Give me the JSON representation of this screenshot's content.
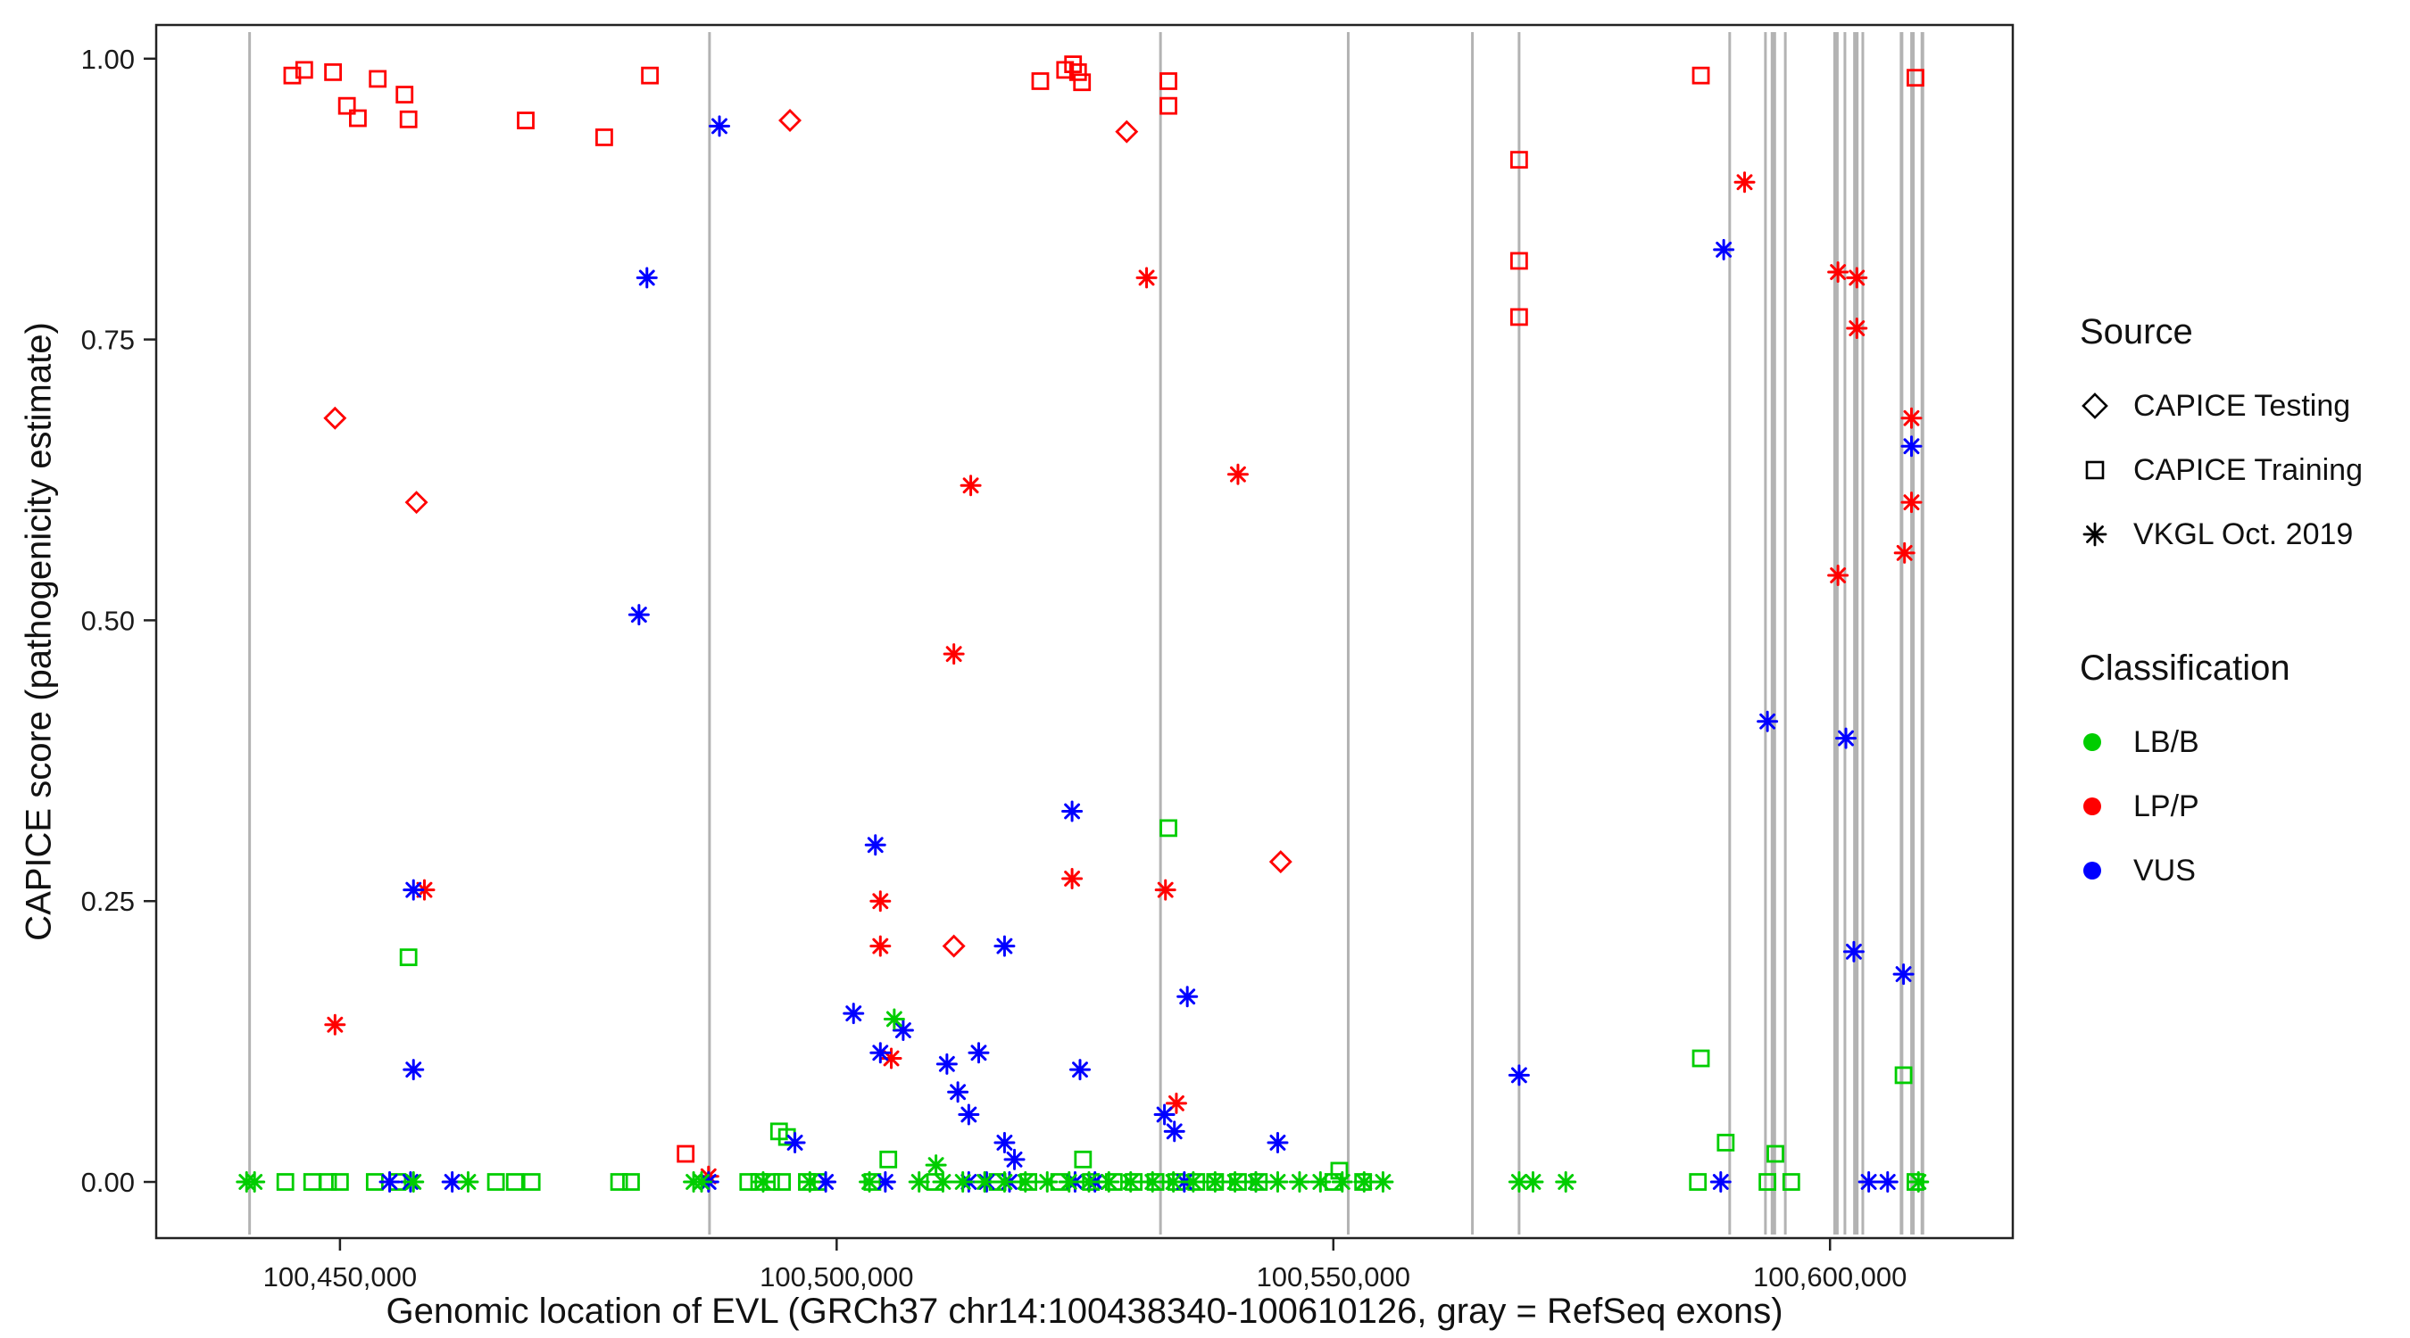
{
  "axes": {
    "y_title": "CAPICE score (pathogenicity estimate)",
    "x_title": "Genomic location of EVL (GRCh37 chr14:100438340-100610126, gray = RefSeq exons)",
    "y_ticks": [
      {
        "value": 1.0,
        "label": "1.00"
      },
      {
        "value": 0.75,
        "label": "0.75"
      },
      {
        "value": 0.5,
        "label": "0.50"
      },
      {
        "value": 0.25,
        "label": "0.25"
      },
      {
        "value": 0.0,
        "label": "0.00"
      }
    ],
    "x_ticks": [
      {
        "value": 100450000,
        "label": "100,450,000"
      },
      {
        "value": 100500000,
        "label": "100,500,000"
      },
      {
        "value": 100550000,
        "label": "100,550,000"
      },
      {
        "value": 100600000,
        "label": "100,600,000"
      }
    ]
  },
  "legend": {
    "source": {
      "title": "Source",
      "items": [
        {
          "label": "CAPICE Testing",
          "symbol": "diamond"
        },
        {
          "label": "CAPICE Training",
          "symbol": "square"
        },
        {
          "label": "VKGL Oct. 2019",
          "symbol": "asterisk"
        }
      ]
    },
    "classification": {
      "title": "Classification",
      "items": [
        {
          "label": "LB/B",
          "color": "#00CD00"
        },
        {
          "label": "LP/P",
          "color": "#FF0000"
        },
        {
          "label": "VUS",
          "color": "#0000FF"
        }
      ]
    }
  },
  "chart_data": {
    "type": "scatter",
    "title": "",
    "xlabel": "Genomic location of EVL (GRCh37 chr14:100438340-100610126, gray = RefSeq exons)",
    "ylabel": "CAPICE score (pathogenicity estimate)",
    "x_view_range": [
      100431500,
      100618400
    ],
    "y_view_range": [
      -0.05,
      1.03
    ],
    "ylim": [
      0,
      1
    ],
    "grid": false,
    "legend_position": "right",
    "colors": {
      "LB/B": "#00CD00",
      "LP/P": "#FF0000",
      "VUS": "#0000FF"
    },
    "exon_color": "#B3B3B3",
    "exons": [
      {
        "x": 100440900,
        "w": 3
      },
      {
        "x": 100487200,
        "w": 3
      },
      {
        "x": 100532600,
        "w": 3
      },
      {
        "x": 100551500,
        "w": 3
      },
      {
        "x": 100564000,
        "w": 3
      },
      {
        "x": 100568700,
        "w": 3
      },
      {
        "x": 100589900,
        "w": 3
      },
      {
        "x": 100593500,
        "w": 3
      },
      {
        "x": 100594300,
        "w": 6
      },
      {
        "x": 100595500,
        "w": 3
      },
      {
        "x": 100600600,
        "w": 6
      },
      {
        "x": 100601500,
        "w": 3
      },
      {
        "x": 100602600,
        "w": 6
      },
      {
        "x": 100603300,
        "w": 3
      },
      {
        "x": 100607200,
        "w": 4
      },
      {
        "x": 100608300,
        "w": 5
      },
      {
        "x": 100609300,
        "w": 4
      }
    ],
    "series": [
      {
        "name": "CAPICE Testing",
        "symbol": "diamond",
        "points": [
          [
            100449500,
            0.68,
            "LP/P"
          ],
          [
            100457700,
            0.605,
            "LP/P"
          ],
          [
            100495300,
            0.945,
            "LP/P"
          ],
          [
            100529200,
            0.935,
            "LP/P"
          ],
          [
            100511800,
            0.21,
            "LP/P"
          ],
          [
            100544700,
            0.285,
            "LP/P"
          ]
        ]
      },
      {
        "name": "CAPICE Training",
        "symbol": "square",
        "points": [
          [
            100445200,
            0.985,
            "LP/P"
          ],
          [
            100446400,
            0.99,
            "LP/P"
          ],
          [
            100449300,
            0.988,
            "LP/P"
          ],
          [
            100450700,
            0.958,
            "LP/P"
          ],
          [
            100451800,
            0.947,
            "LP/P"
          ],
          [
            100453800,
            0.982,
            "LP/P"
          ],
          [
            100456500,
            0.968,
            "LP/P"
          ],
          [
            100456900,
            0.946,
            "LP/P"
          ],
          [
            100468700,
            0.945,
            "LP/P"
          ],
          [
            100476600,
            0.93,
            "LP/P"
          ],
          [
            100481200,
            0.985,
            "LP/P"
          ],
          [
            100520500,
            0.98,
            "LP/P"
          ],
          [
            100523000,
            0.99,
            "LP/P"
          ],
          [
            100523800,
            0.995,
            "LP/P"
          ],
          [
            100524300,
            0.988,
            "LP/P"
          ],
          [
            100524700,
            0.979,
            "LP/P"
          ],
          [
            100533400,
            0.98,
            "LP/P"
          ],
          [
            100533400,
            0.958,
            "LP/P"
          ],
          [
            100568700,
            0.91,
            "LP/P"
          ],
          [
            100568700,
            0.82,
            "LP/P"
          ],
          [
            100568700,
            0.77,
            "LP/P"
          ],
          [
            100587000,
            0.985,
            "LP/P"
          ],
          [
            100608600,
            0.983,
            "LP/P"
          ],
          [
            100484800,
            0.025,
            "LP/P"
          ],
          [
            100456900,
            0.2,
            "LB/B"
          ],
          [
            100533400,
            0.315,
            "LB/B"
          ],
          [
            100494200,
            0.045,
            "LB/B"
          ],
          [
            100495000,
            0.04,
            "LB/B"
          ],
          [
            100505200,
            0.02,
            "LB/B"
          ],
          [
            100524800,
            0.02,
            "LB/B"
          ],
          [
            100550600,
            0.01,
            "LB/B"
          ],
          [
            100587000,
            0.11,
            "LB/B"
          ],
          [
            100589500,
            0.035,
            "LB/B"
          ],
          [
            100594500,
            0.025,
            "LB/B"
          ],
          [
            100607400,
            0.095,
            "LB/B"
          ],
          [
            100444500,
            0.0,
            "LB/B"
          ],
          [
            100447200,
            0.0,
            "LB/B"
          ],
          [
            100448800,
            0.0,
            "LB/B"
          ],
          [
            100450000,
            0.0,
            "LB/B"
          ],
          [
            100453500,
            0.0,
            "LB/B"
          ],
          [
            100455800,
            0.0,
            "LB/B"
          ],
          [
            100465700,
            0.0,
            "LB/B"
          ],
          [
            100467600,
            0.0,
            "LB/B"
          ],
          [
            100469300,
            0.0,
            "LB/B"
          ],
          [
            100478100,
            0.0,
            "LB/B"
          ],
          [
            100479300,
            0.0,
            "LB/B"
          ],
          [
            100491100,
            0.0,
            "LB/B"
          ],
          [
            100492200,
            0.0,
            "LB/B"
          ],
          [
            100493400,
            0.0,
            "LB/B"
          ],
          [
            100494500,
            0.0,
            "LB/B"
          ],
          [
            100497000,
            0.0,
            "LB/B"
          ],
          [
            100498100,
            0.0,
            "LB/B"
          ],
          [
            100503600,
            0.0,
            "LB/B"
          ],
          [
            100509900,
            0.0,
            "LB/B"
          ],
          [
            100516200,
            0.0,
            "LB/B"
          ],
          [
            100519300,
            0.0,
            "LB/B"
          ],
          [
            100522400,
            0.0,
            "LB/B"
          ],
          [
            100525600,
            0.0,
            "LB/B"
          ],
          [
            100527900,
            0.0,
            "LB/B"
          ],
          [
            100529900,
            0.0,
            "LB/B"
          ],
          [
            100532100,
            0.0,
            "LB/B"
          ],
          [
            100534200,
            0.0,
            "LB/B"
          ],
          [
            100536200,
            0.0,
            "LB/B"
          ],
          [
            100538100,
            0.0,
            "LB/B"
          ],
          [
            100540400,
            0.0,
            "LB/B"
          ],
          [
            100542500,
            0.0,
            "LB/B"
          ],
          [
            100550000,
            0.0,
            "LB/B"
          ],
          [
            100553000,
            0.0,
            "LB/B"
          ],
          [
            100586700,
            0.0,
            "LB/B"
          ],
          [
            100593700,
            0.0,
            "LB/B"
          ],
          [
            100596100,
            0.0,
            "LB/B"
          ],
          [
            100608600,
            0.0,
            "LB/B"
          ]
        ]
      },
      {
        "name": "VKGL Oct. 2019",
        "symbol": "asterisk",
        "points": [
          [
            100531200,
            0.805,
            "LP/P"
          ],
          [
            100540400,
            0.63,
            "LP/P"
          ],
          [
            100513500,
            0.62,
            "LP/P"
          ],
          [
            100511800,
            0.47,
            "LP/P"
          ],
          [
            100449500,
            0.14,
            "LP/P"
          ],
          [
            100458500,
            0.26,
            "LP/P"
          ],
          [
            100504400,
            0.25,
            "LP/P"
          ],
          [
            100523700,
            0.27,
            "LP/P"
          ],
          [
            100533100,
            0.26,
            "LP/P"
          ],
          [
            100504400,
            0.21,
            "LP/P"
          ],
          [
            100505500,
            0.11,
            "LP/P"
          ],
          [
            100534200,
            0.07,
            "LP/P"
          ],
          [
            100487100,
            0.005,
            "LP/P"
          ],
          [
            100591400,
            0.89,
            "LP/P"
          ],
          [
            100600800,
            0.81,
            "LP/P"
          ],
          [
            100602700,
            0.805,
            "LP/P"
          ],
          [
            100602700,
            0.76,
            "LP/P"
          ],
          [
            100600800,
            0.54,
            "LP/P"
          ],
          [
            100608200,
            0.68,
            "LP/P"
          ],
          [
            100608200,
            0.605,
            "LP/P"
          ],
          [
            100607500,
            0.56,
            "LP/P"
          ],
          [
            100488200,
            0.94,
            "VUS"
          ],
          [
            100480900,
            0.805,
            "VUS"
          ],
          [
            100480100,
            0.505,
            "VUS"
          ],
          [
            100457400,
            0.26,
            "VUS"
          ],
          [
            100457400,
            0.1,
            "VUS"
          ],
          [
            100503900,
            0.3,
            "VUS"
          ],
          [
            100523700,
            0.33,
            "VUS"
          ],
          [
            100516900,
            0.21,
            "VUS"
          ],
          [
            100535300,
            0.165,
            "VUS"
          ],
          [
            100501700,
            0.15,
            "VUS"
          ],
          [
            100506700,
            0.135,
            "VUS"
          ],
          [
            100504400,
            0.115,
            "VUS"
          ],
          [
            100511100,
            0.105,
            "VUS"
          ],
          [
            100514300,
            0.115,
            "VUS"
          ],
          [
            100524500,
            0.1,
            "VUS"
          ],
          [
            100512200,
            0.08,
            "VUS"
          ],
          [
            100513300,
            0.06,
            "VUS"
          ],
          [
            100533000,
            0.06,
            "VUS"
          ],
          [
            100534000,
            0.045,
            "VUS"
          ],
          [
            100544400,
            0.035,
            "VUS"
          ],
          [
            100568700,
            0.095,
            "VUS"
          ],
          [
            100589300,
            0.83,
            "VUS"
          ],
          [
            100593700,
            0.41,
            "VUS"
          ],
          [
            100601600,
            0.395,
            "VUS"
          ],
          [
            100602400,
            0.205,
            "VUS"
          ],
          [
            100607400,
            0.185,
            "VUS"
          ],
          [
            100608200,
            0.655,
            "VUS"
          ],
          [
            100495800,
            0.035,
            "VUS"
          ],
          [
            100516900,
            0.035,
            "VUS"
          ],
          [
            100517900,
            0.02,
            "VUS"
          ],
          [
            100455000,
            0.0,
            "VUS"
          ],
          [
            100457100,
            0.0,
            "VUS"
          ],
          [
            100461300,
            0.0,
            "VUS"
          ],
          [
            100487100,
            0.0,
            "VUS"
          ],
          [
            100498900,
            0.0,
            "VUS"
          ],
          [
            100504900,
            0.0,
            "VUS"
          ],
          [
            100513300,
            0.0,
            "VUS"
          ],
          [
            100515100,
            0.0,
            "VUS"
          ],
          [
            100517400,
            0.0,
            "VUS"
          ],
          [
            100524000,
            0.0,
            "VUS"
          ],
          [
            100526000,
            0.0,
            "VUS"
          ],
          [
            100535000,
            0.0,
            "VUS"
          ],
          [
            100542200,
            0.0,
            "VUS"
          ],
          [
            100589000,
            0.0,
            "VUS"
          ],
          [
            100603900,
            0.0,
            "VUS"
          ],
          [
            100605800,
            0.0,
            "VUS"
          ],
          [
            100505800,
            0.145,
            "LB/B"
          ],
          [
            100510000,
            0.015,
            "LB/B"
          ],
          [
            100440600,
            0.0,
            "LB/B"
          ],
          [
            100441400,
            0.0,
            "LB/B"
          ],
          [
            100457400,
            0.0,
            "LB/B"
          ],
          [
            100462900,
            0.0,
            "LB/B"
          ],
          [
            100485600,
            0.0,
            "LB/B"
          ],
          [
            100486400,
            0.0,
            "LB/B"
          ],
          [
            100492600,
            0.0,
            "LB/B"
          ],
          [
            100497300,
            0.0,
            "LB/B"
          ],
          [
            100503300,
            0.0,
            "LB/B"
          ],
          [
            100508300,
            0.0,
            "LB/B"
          ],
          [
            100510700,
            0.0,
            "LB/B"
          ],
          [
            100512700,
            0.0,
            "LB/B"
          ],
          [
            100514900,
            0.0,
            "LB/B"
          ],
          [
            100516900,
            0.0,
            "LB/B"
          ],
          [
            100519000,
            0.0,
            "LB/B"
          ],
          [
            100521200,
            0.0,
            "LB/B"
          ],
          [
            100523400,
            0.0,
            "LB/B"
          ],
          [
            100525400,
            0.0,
            "LB/B"
          ],
          [
            100527400,
            0.0,
            "LB/B"
          ],
          [
            100529600,
            0.0,
            "LB/B"
          ],
          [
            100531800,
            0.0,
            "LB/B"
          ],
          [
            100533900,
            0.0,
            "LB/B"
          ],
          [
            100535900,
            0.0,
            "LB/B"
          ],
          [
            100538100,
            0.0,
            "LB/B"
          ],
          [
            100540100,
            0.0,
            "LB/B"
          ],
          [
            100542200,
            0.0,
            "LB/B"
          ],
          [
            100544400,
            0.0,
            "LB/B"
          ],
          [
            100546600,
            0.0,
            "LB/B"
          ],
          [
            100548700,
            0.0,
            "LB/B"
          ],
          [
            100550900,
            0.0,
            "LB/B"
          ],
          [
            100553100,
            0.0,
            "LB/B"
          ],
          [
            100555000,
            0.0,
            "LB/B"
          ],
          [
            100568700,
            0.0,
            "LB/B"
          ],
          [
            100570100,
            0.0,
            "LB/B"
          ],
          [
            100573400,
            0.0,
            "LB/B"
          ],
          [
            100608900,
            0.0,
            "LB/B"
          ]
        ]
      }
    ]
  }
}
